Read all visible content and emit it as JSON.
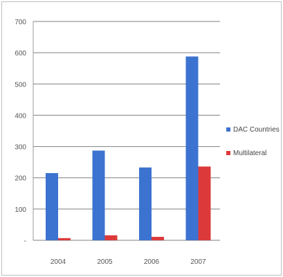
{
  "chart_data": {
    "type": "bar",
    "categories": [
      "2004",
      "2005",
      "2006",
      "2007"
    ],
    "series": [
      {
        "name": "DAC Countries",
        "color": "#3c73d0",
        "values": [
          215,
          287,
          233,
          588
        ]
      },
      {
        "name": "Multilateral",
        "color": "#dc3a3a",
        "values": [
          7,
          16,
          11,
          236
        ]
      }
    ],
    "ylim": [
      0,
      700
    ],
    "yticks": [
      0,
      100,
      200,
      300,
      400,
      500,
      600,
      700
    ],
    "ytick_labels": [
      "-",
      "100",
      "200",
      "300",
      "400",
      "500",
      "600",
      "700"
    ],
    "grid": true,
    "legend": "right"
  }
}
